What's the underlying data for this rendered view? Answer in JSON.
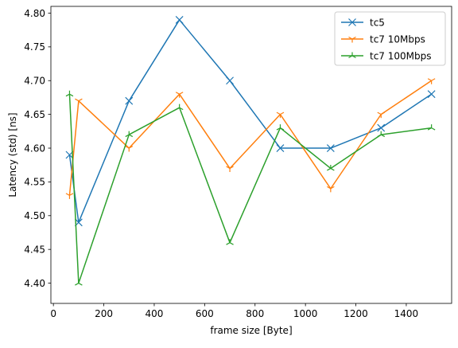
{
  "chart_data": {
    "type": "line",
    "xlabel": "frame size [Byte]",
    "ylabel": "Latency (std) [ns]",
    "xlim": [
      -10,
      1580
    ],
    "ylim": [
      4.37,
      4.81
    ],
    "xticks": [
      0,
      200,
      400,
      600,
      800,
      1000,
      1200,
      1400
    ],
    "xtick_labels": [
      "0",
      "200",
      "400",
      "600",
      "800",
      "1000",
      "1200",
      "1400"
    ],
    "yticks": [
      4.4,
      4.45,
      4.5,
      4.55,
      4.6,
      4.65,
      4.7,
      4.75,
      4.8
    ],
    "ytick_labels": [
      "4.40",
      "4.45",
      "4.50",
      "4.55",
      "4.60",
      "4.65",
      "4.70",
      "4.75",
      "4.80"
    ],
    "grid": false,
    "legend_position": "top-right",
    "x": [
      64,
      100,
      300,
      500,
      700,
      900,
      1100,
      1300,
      1500
    ],
    "series": [
      {
        "name": "tc5",
        "color": "#1f77b4",
        "marker": "x",
        "values": [
          4.59,
          4.49,
          4.67,
          4.79,
          4.7,
          4.6,
          4.6,
          4.63,
          4.68
        ]
      },
      {
        "name": "tc7 10Mbps",
        "color": "#ff7f0e",
        "marker": "tri-up",
        "values": [
          4.53,
          4.67,
          4.6,
          4.68,
          4.57,
          4.65,
          4.54,
          4.65,
          4.7
        ]
      },
      {
        "name": "tc7 100Mbps",
        "color": "#2ca02c",
        "marker": "tri-down",
        "values": [
          4.68,
          4.4,
          4.62,
          4.66,
          4.46,
          4.63,
          4.57,
          4.62,
          4.63
        ]
      }
    ]
  }
}
